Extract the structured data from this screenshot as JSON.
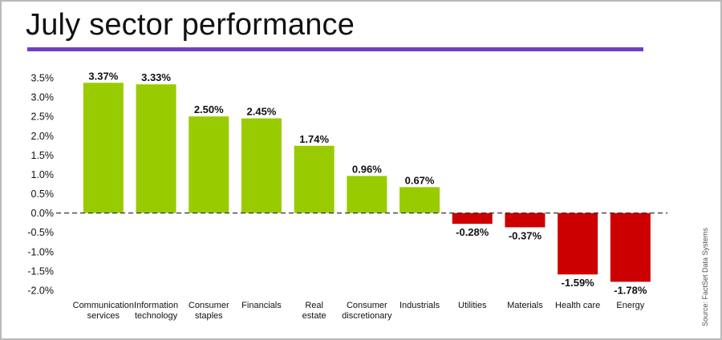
{
  "title": "July sector performance",
  "source": "Source: FactSet Data Systems",
  "colors": {
    "accent_rule": "#6f3fc9",
    "positive": "#99cc00",
    "negative": "#cc0000",
    "zero_line": "#333333"
  },
  "chart_data": {
    "type": "bar",
    "title": "July sector performance",
    "xlabel": "",
    "ylabel": "",
    "ylim": [
      -2.0,
      3.5
    ],
    "yticks": [
      3.5,
      3.0,
      2.5,
      2.0,
      1.5,
      1.0,
      0.5,
      0.0,
      -0.5,
      -1.0,
      -1.5,
      -2.0
    ],
    "ytick_labels": [
      "3.5%",
      "3.0%",
      "2.5%",
      "2.0%",
      "1.5%",
      "1.0%",
      "0.5%",
      "0.0%",
      "-0.5%",
      "-1.0%",
      "-1.5%",
      "-2.0%"
    ],
    "grid": false,
    "categories": [
      [
        "Communication",
        "services"
      ],
      [
        "Information",
        "technology"
      ],
      [
        "Consumer",
        "staples"
      ],
      [
        "Financials"
      ],
      [
        "Real",
        "estate"
      ],
      [
        "Consumer",
        "discretionary"
      ],
      [
        "Industrials"
      ],
      [
        "Utilities"
      ],
      [
        "Materials"
      ],
      [
        "Health care"
      ],
      [
        "Energy"
      ]
    ],
    "values": [
      3.37,
      3.33,
      2.5,
      2.45,
      1.74,
      0.96,
      0.67,
      -0.28,
      -0.37,
      -1.59,
      -1.78
    ],
    "value_labels": [
      "3.37%",
      "3.33%",
      "2.50%",
      "2.45%",
      "1.74%",
      "0.96%",
      "0.67%",
      "-0.28%",
      "-0.37%",
      "-1.59%",
      "-1.78%"
    ]
  }
}
